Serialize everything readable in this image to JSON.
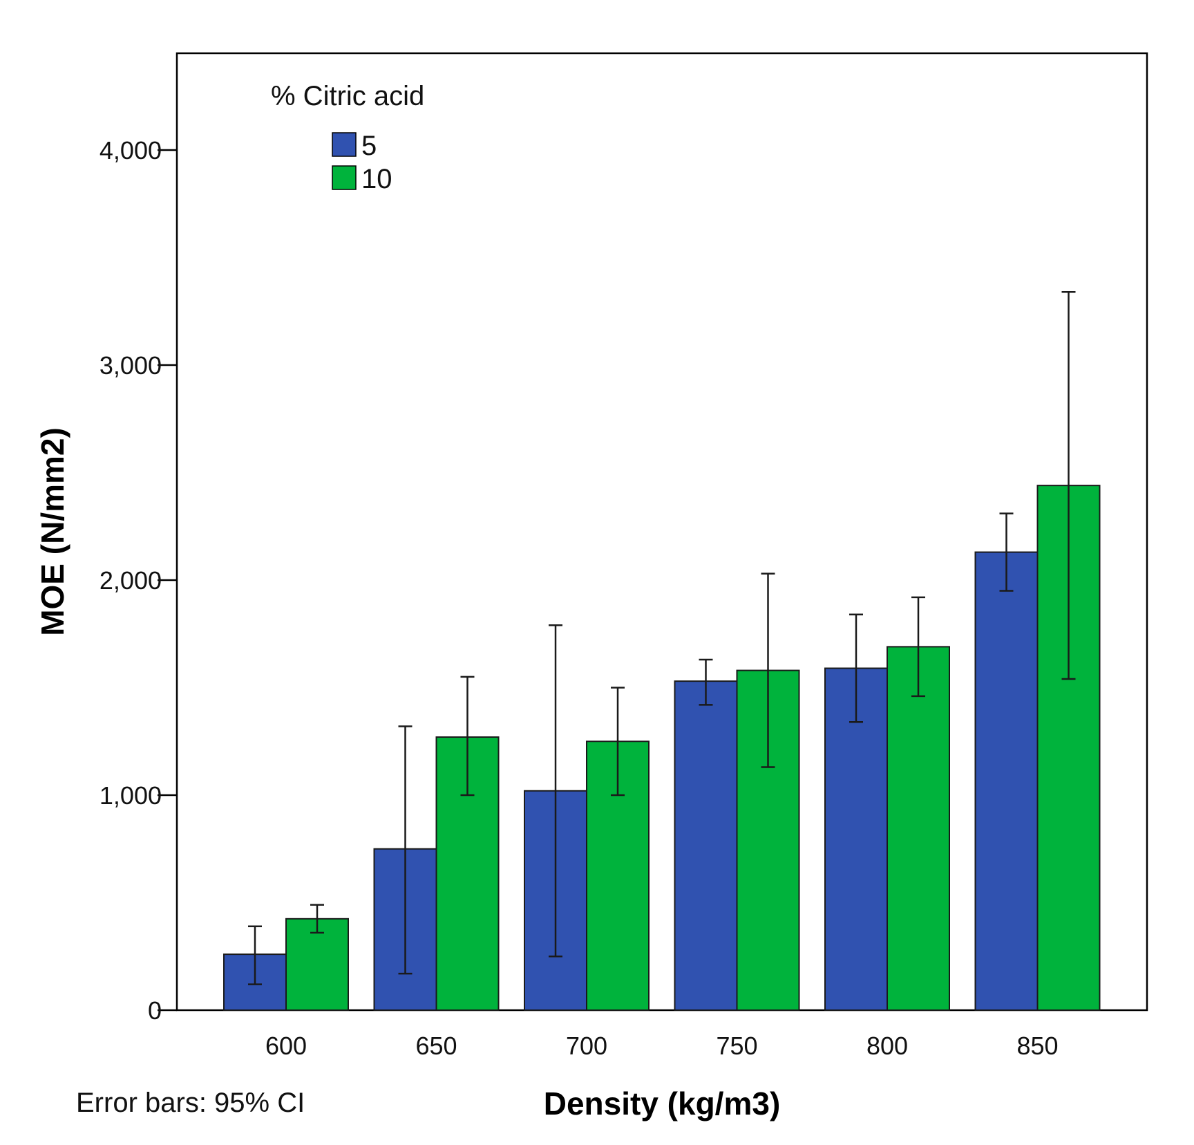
{
  "chart_data": {
    "type": "bar",
    "xlabel": "Density (kg/m3)",
    "ylabel": "MOE (N/mm2)",
    "categories": [
      "600",
      "650",
      "700",
      "750",
      "800",
      "850"
    ],
    "ylim": [
      0,
      4450
    ],
    "yticks": [
      0,
      1000,
      2000,
      3000,
      4000
    ],
    "ytick_labels": [
      "0",
      "1,000",
      "2,000",
      "3,000",
      "4,000"
    ],
    "legend": {
      "title": "% Citric acid",
      "placement": "top-left"
    },
    "series": [
      {
        "name": "5",
        "color": "#3052b0",
        "values": [
          260,
          750,
          1020,
          1530,
          1590,
          2130
        ],
        "ci_low": [
          120,
          170,
          250,
          1420,
          1340,
          1950
        ],
        "ci_high": [
          390,
          1320,
          1790,
          1630,
          1840,
          2310
        ]
      },
      {
        "name": "10",
        "color": "#00b33c",
        "values": [
          425,
          1270,
          1250,
          1580,
          1690,
          2440
        ],
        "ci_low": [
          360,
          1000,
          1000,
          1130,
          1460,
          1540
        ],
        "ci_high": [
          490,
          1550,
          1500,
          2030,
          1920,
          3340
        ]
      }
    ],
    "grid": false,
    "error_bar_note": "Error bars: 95% CI"
  }
}
